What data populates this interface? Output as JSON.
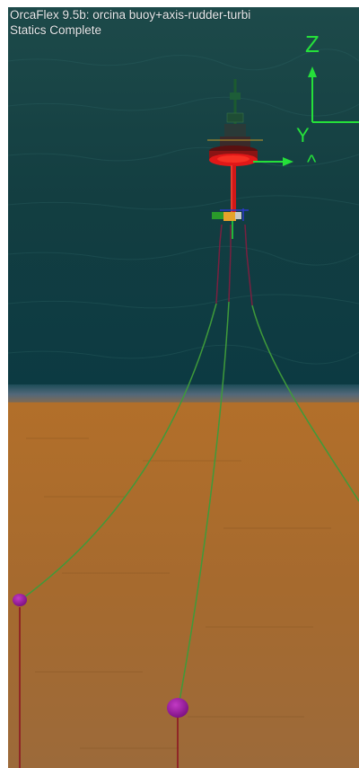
{
  "viewport": {
    "title": "OrcaFlex 9.5b: orcina buoy+axis-rudder-turbi",
    "status": "Statics Complete"
  },
  "axes": {
    "z_label": "Z",
    "y_label": "Y",
    "x_label": "^"
  },
  "colors": {
    "sea": "#0f3a3c",
    "seabed": "#a8692a",
    "axis_green": "#25e03a",
    "mooring_green": "#3f9a3a",
    "anchor_purple": "#9a1a9e",
    "buoy_red": "#e01818",
    "hud_text": "#e8eef0"
  }
}
